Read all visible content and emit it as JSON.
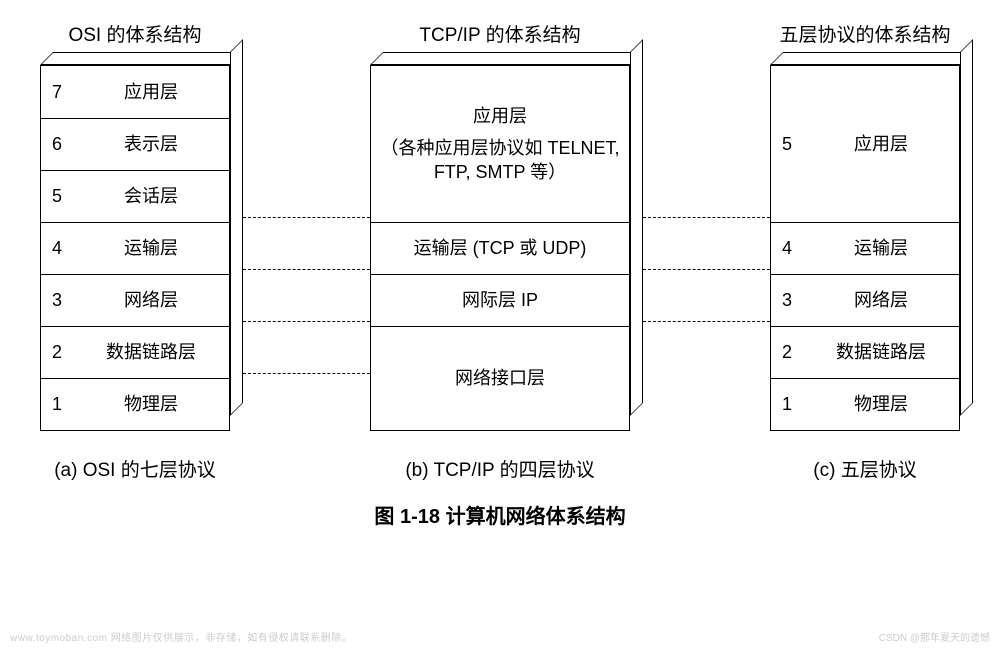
{
  "geometry": {
    "osi_width": 190,
    "tcpip_width": 260,
    "five_width": 190,
    "depth": 13,
    "osi_row_h": 52,
    "tcpip_heights": [
      156,
      52,
      52,
      104
    ],
    "five_heights": [
      156,
      52,
      52,
      52,
      52
    ]
  },
  "colors": {
    "border": "#000000",
    "bg": "#ffffff",
    "text": "#000000"
  },
  "osi": {
    "title": "OSI 的体系结构",
    "caption": "(a) OSI 的七层协议",
    "layers": [
      {
        "num": "7",
        "label": "应用层"
      },
      {
        "num": "6",
        "label": "表示层"
      },
      {
        "num": "5",
        "label": "会话层"
      },
      {
        "num": "4",
        "label": "运输层"
      },
      {
        "num": "3",
        "label": "网络层"
      },
      {
        "num": "2",
        "label": "数据链路层"
      },
      {
        "num": "1",
        "label": "物理层"
      }
    ]
  },
  "tcpip": {
    "title": "TCP/IP 的体系结构",
    "caption": "(b) TCP/IP 的四层协议",
    "layers": [
      {
        "label_line1": "应用层",
        "label_line2": "（各种应用层协议如 TELNET, FTP, SMTP 等）"
      },
      {
        "label_line1": "运输层 (TCP 或 UDP)"
      },
      {
        "label_line1": "网际层 IP"
      },
      {
        "label_line1": "网络接口层"
      }
    ]
  },
  "five": {
    "title": "五层协议的体系结构",
    "caption": "(c)  五层协议",
    "layers": [
      {
        "num": "5",
        "label": "应用层"
      },
      {
        "num": "4",
        "label": "运输层"
      },
      {
        "num": "3",
        "label": "网络层"
      },
      {
        "num": "2",
        "label": "数据链路层"
      },
      {
        "num": "1",
        "label": "物理层"
      }
    ]
  },
  "figure_caption": "图 1-18    计算机网络体系结构",
  "watermark_left": "www.toymoban.com 网络图片仅供展示，非存储，如有侵权请联系删除。",
  "watermark_right": "CSDN @那年夏天的遗憾"
}
